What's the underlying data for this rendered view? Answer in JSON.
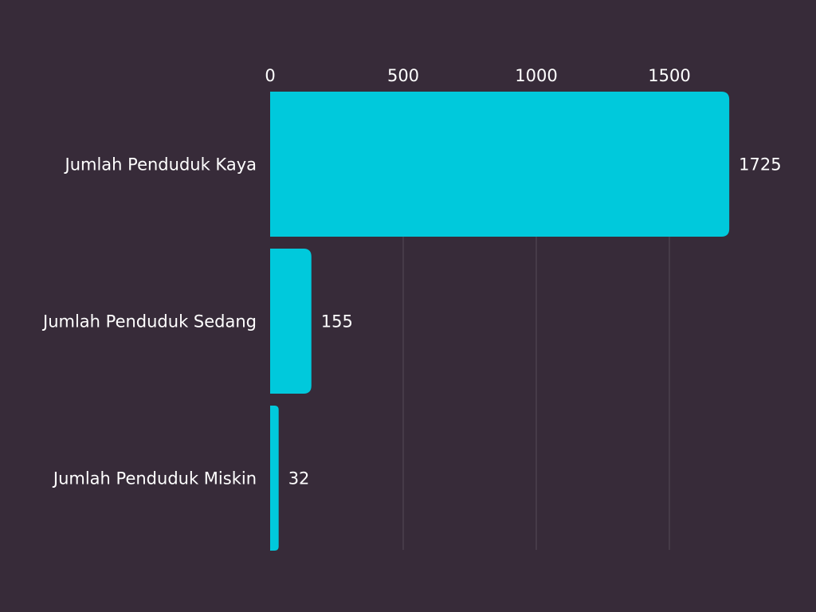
{
  "chart_data": {
    "type": "bar",
    "orientation": "horizontal",
    "title": "",
    "xlabel": "",
    "ylabel": "",
    "categories": [
      "Jumlah Penduduk Kaya",
      "Jumlah Penduduk Sedang",
      "Jumlah Penduduk Miskin"
    ],
    "values": [
      1725,
      155,
      32
    ],
    "xlim": [
      0,
      2050
    ],
    "ticks": [
      0,
      500,
      1000,
      1500
    ],
    "tick_labels": [
      "0",
      "500",
      "1000",
      "1500"
    ],
    "value_labels": [
      "1725",
      "155",
      "32"
    ],
    "axis_position": "top",
    "grid": true,
    "legend": "none",
    "colors": {
      "background": "#372b39",
      "bar": "#00c9dc",
      "gridline": "#544b57",
      "text": "#ffffff"
    }
  }
}
